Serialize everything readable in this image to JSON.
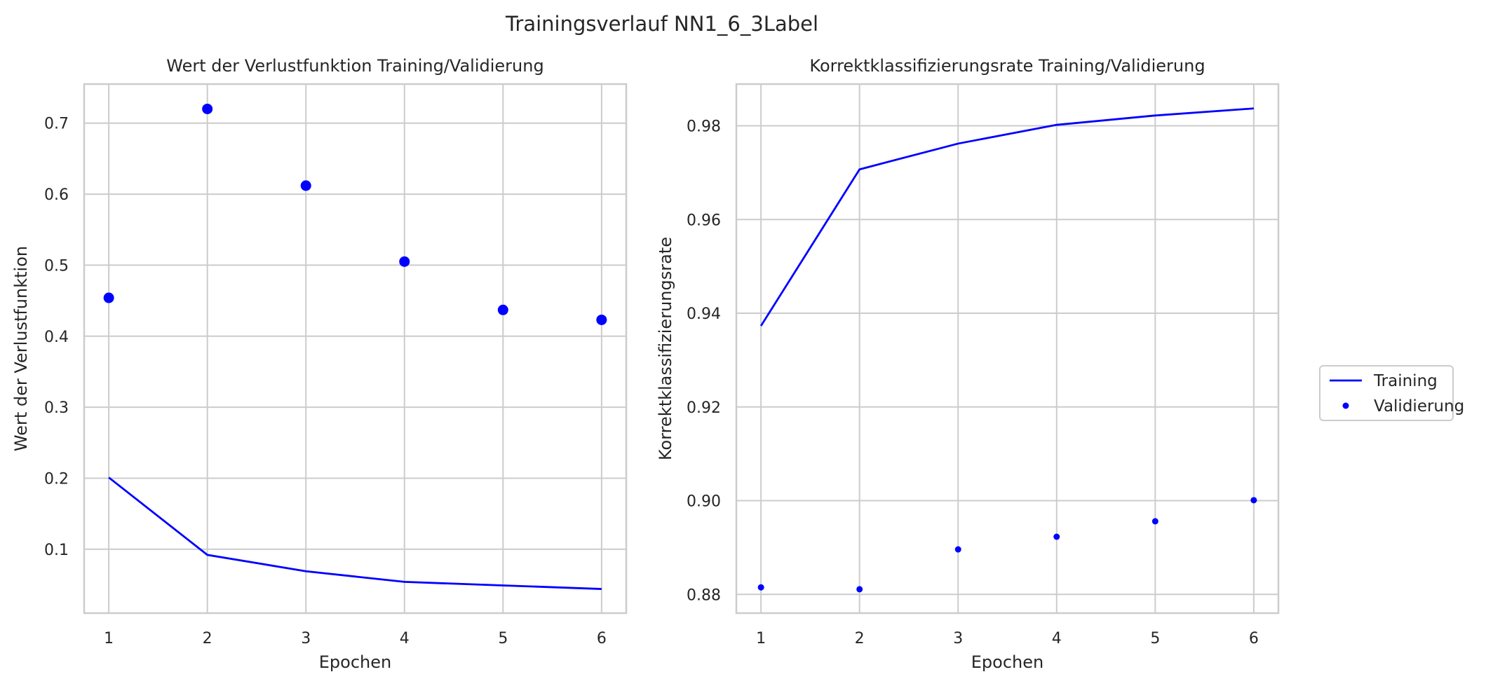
{
  "figure": {
    "title": "Trainingsverlauf NN1_6_3Label"
  },
  "colors": {
    "series": "#0000ff",
    "grid": "#cccccc",
    "spine": "#cccccc",
    "text": "#262626",
    "background": "#ffffff"
  },
  "legend": {
    "placement": "center-right",
    "entries": [
      {
        "label": "Training",
        "marker": "line"
      },
      {
        "label": "Validierung",
        "marker": "dot"
      }
    ]
  },
  "chart_data": [
    {
      "type": "line",
      "title": "Wert der Verlustfunktion Training/Validierung",
      "xlabel": "Epochen",
      "ylabel": "Wert der Verlustfunktion",
      "x": [
        1,
        2,
        3,
        4,
        5,
        6
      ],
      "xlim": [
        0.75,
        6.25
      ],
      "ylim": [
        0.01,
        0.755
      ],
      "xticks": [
        1,
        2,
        3,
        4,
        5,
        6
      ],
      "yticks": [
        0.1,
        0.2,
        0.3,
        0.4,
        0.5,
        0.6,
        0.7
      ],
      "ytick_labels": [
        "0.1",
        "0.2",
        "0.3",
        "0.4",
        "0.5",
        "0.6",
        "0.7"
      ],
      "grid": true,
      "series": [
        {
          "name": "Training",
          "style": "line",
          "values": [
            0.201,
            0.092,
            0.069,
            0.054,
            0.049,
            0.044
          ]
        },
        {
          "name": "Validierung",
          "style": "dots",
          "marker_size": "large",
          "values": [
            0.454,
            0.72,
            0.612,
            0.505,
            0.437,
            0.423
          ]
        }
      ]
    },
    {
      "type": "line",
      "title": "Korrektklassifizierungsrate Training/Validierung",
      "xlabel": "Epochen",
      "ylabel": "Korrektklassifizierungsrate",
      "x": [
        1,
        2,
        3,
        4,
        5,
        6
      ],
      "xlim": [
        0.75,
        6.25
      ],
      "ylim": [
        0.876,
        0.9889
      ],
      "xticks": [
        1,
        2,
        3,
        4,
        5,
        6
      ],
      "yticks": [
        0.88,
        0.9,
        0.92,
        0.94,
        0.96,
        0.98
      ],
      "ytick_labels": [
        "0.88",
        "0.90",
        "0.92",
        "0.94",
        "0.96",
        "0.98"
      ],
      "grid": true,
      "series": [
        {
          "name": "Training",
          "style": "line",
          "values": [
            0.9373,
            0.9707,
            0.9762,
            0.9802,
            0.9822,
            0.9837
          ]
        },
        {
          "name": "Validierung",
          "style": "dots",
          "marker_size": "small",
          "values": [
            0.8815,
            0.8811,
            0.8896,
            0.8923,
            0.8956,
            0.9001
          ]
        }
      ]
    }
  ]
}
